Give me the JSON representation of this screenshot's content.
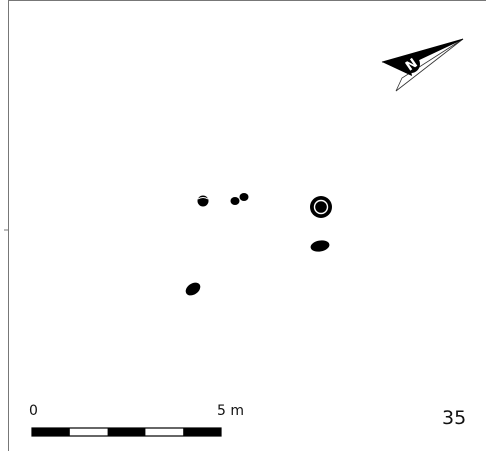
{
  "north_arrow": {
    "label": "N",
    "icon": "north-arrow-icon"
  },
  "scale_bar": {
    "start_label": "0",
    "end_label": "5 m",
    "segments": 5
  },
  "plan_number": "35",
  "features": [
    {
      "id": "posthole-1",
      "shape": "small round pit with inner mark"
    },
    {
      "id": "posthole-2",
      "shape": "small oval pit"
    },
    {
      "id": "posthole-3",
      "shape": "small oval pit"
    },
    {
      "id": "posthole-4",
      "shape": "round pit with white center"
    },
    {
      "id": "posthole-5",
      "shape": "elongated oval pit"
    },
    {
      "id": "posthole-6",
      "shape": "elongated oval pit"
    }
  ],
  "colors": {
    "ink": "#000000",
    "paper": "#ffffff",
    "frame": "#555555"
  }
}
